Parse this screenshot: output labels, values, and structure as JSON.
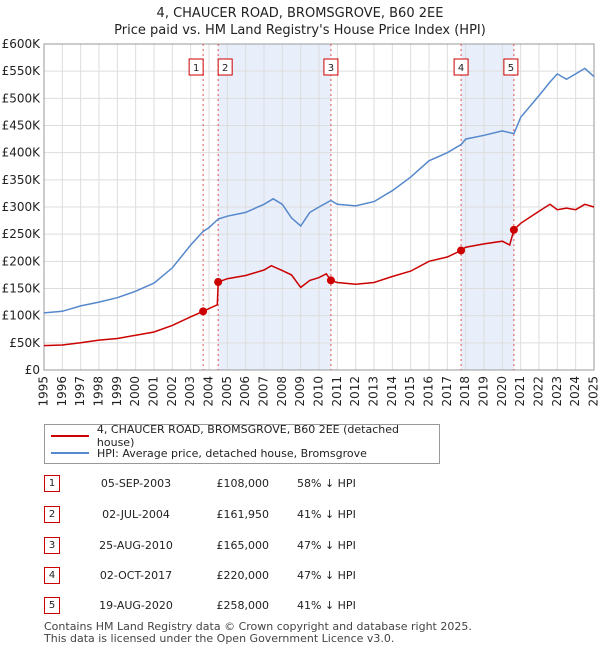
{
  "title": "4, CHAUCER ROAD, BROMSGROVE, B60 2EE",
  "subtitle": "Price paid vs. HM Land Registry's House Price Index (HPI)",
  "chart_data": {
    "type": "line",
    "xlim": [
      1995,
      2025
    ],
    "ylim": [
      0,
      600000
    ],
    "x_ticks": [
      "1995",
      "1996",
      "1997",
      "1998",
      "1999",
      "2000",
      "2001",
      "2002",
      "2003",
      "2004",
      "2005",
      "2006",
      "2007",
      "2008",
      "2009",
      "2010",
      "2011",
      "2012",
      "2013",
      "2014",
      "2015",
      "2016",
      "2017",
      "2018",
      "2019",
      "2020",
      "2021",
      "2022",
      "2023",
      "2024",
      "2025"
    ],
    "y_ticks": [
      {
        "value": 0,
        "label": "£0"
      },
      {
        "value": 50000,
        "label": "£50K"
      },
      {
        "value": 100000,
        "label": "£100K"
      },
      {
        "value": 150000,
        "label": "£150K"
      },
      {
        "value": 200000,
        "label": "£200K"
      },
      {
        "value": 250000,
        "label": "£250K"
      },
      {
        "value": 300000,
        "label": "£300K"
      },
      {
        "value": 350000,
        "label": "£350K"
      },
      {
        "value": 400000,
        "label": "£400K"
      },
      {
        "value": 450000,
        "label": "£450K"
      },
      {
        "value": 500000,
        "label": "£500K"
      },
      {
        "value": 550000,
        "label": "£550K"
      },
      {
        "value": 600000,
        "label": "£600K"
      }
    ],
    "grid": true,
    "series": [
      {
        "name": "4, CHAUCER ROAD, BROMSGROVE, B60 2EE (detached house)",
        "color": "#cc0000",
        "points": [
          [
            1995.0,
            45000
          ],
          [
            1996.0,
            46000
          ],
          [
            1997.0,
            50000
          ],
          [
            1998.0,
            55000
          ],
          [
            1999.0,
            58000
          ],
          [
            2000.0,
            64000
          ],
          [
            2001.0,
            70000
          ],
          [
            2002.0,
            82000
          ],
          [
            2003.0,
            98000
          ],
          [
            2003.68,
            108000
          ],
          [
            2004.0,
            113000
          ],
          [
            2004.45,
            120000
          ],
          [
            2004.5,
            161950
          ],
          [
            2005.0,
            168000
          ],
          [
            2006.0,
            174000
          ],
          [
            2007.0,
            184000
          ],
          [
            2007.4,
            192000
          ],
          [
            2008.0,
            183000
          ],
          [
            2008.5,
            175000
          ],
          [
            2009.0,
            152000
          ],
          [
            2009.5,
            165000
          ],
          [
            2010.0,
            170000
          ],
          [
            2010.4,
            177000
          ],
          [
            2010.65,
            165000
          ],
          [
            2011.0,
            161000
          ],
          [
            2012.0,
            158000
          ],
          [
            2013.0,
            161000
          ],
          [
            2014.0,
            172000
          ],
          [
            2015.0,
            182000
          ],
          [
            2016.0,
            200000
          ],
          [
            2017.0,
            208000
          ],
          [
            2017.75,
            220000
          ],
          [
            2018.0,
            226000
          ],
          [
            2019.0,
            232000
          ],
          [
            2020.0,
            237000
          ],
          [
            2020.4,
            230000
          ],
          [
            2020.63,
            258000
          ],
          [
            2021.0,
            270000
          ],
          [
            2022.0,
            292000
          ],
          [
            2022.6,
            305000
          ],
          [
            2023.0,
            295000
          ],
          [
            2023.5,
            298000
          ],
          [
            2024.0,
            295000
          ],
          [
            2024.5,
            305000
          ],
          [
            2025.0,
            300000
          ]
        ]
      },
      {
        "name": "HPI: Average price, detached house, Bromsgrove",
        "color": "#5588cc",
        "points": [
          [
            1995.0,
            105000
          ],
          [
            1996.0,
            108000
          ],
          [
            1997.0,
            118000
          ],
          [
            1998.0,
            125000
          ],
          [
            1999.0,
            133000
          ],
          [
            2000.0,
            145000
          ],
          [
            2001.0,
            160000
          ],
          [
            2002.0,
            188000
          ],
          [
            2003.0,
            230000
          ],
          [
            2003.68,
            255000
          ],
          [
            2004.0,
            262000
          ],
          [
            2004.5,
            278000
          ],
          [
            2005.0,
            283000
          ],
          [
            2006.0,
            290000
          ],
          [
            2007.0,
            305000
          ],
          [
            2007.5,
            315000
          ],
          [
            2008.0,
            305000
          ],
          [
            2008.5,
            280000
          ],
          [
            2009.0,
            265000
          ],
          [
            2009.5,
            290000
          ],
          [
            2010.0,
            300000
          ],
          [
            2010.65,
            312000
          ],
          [
            2011.0,
            305000
          ],
          [
            2012.0,
            302000
          ],
          [
            2013.0,
            310000
          ],
          [
            2014.0,
            330000
          ],
          [
            2015.0,
            355000
          ],
          [
            2016.0,
            385000
          ],
          [
            2017.0,
            400000
          ],
          [
            2017.75,
            415000
          ],
          [
            2018.0,
            425000
          ],
          [
            2019.0,
            432000
          ],
          [
            2020.0,
            440000
          ],
          [
            2020.63,
            435000
          ],
          [
            2021.0,
            465000
          ],
          [
            2022.0,
            505000
          ],
          [
            2022.6,
            530000
          ],
          [
            2023.0,
            545000
          ],
          [
            2023.5,
            535000
          ],
          [
            2024.0,
            545000
          ],
          [
            2024.5,
            555000
          ],
          [
            2025.0,
            540000
          ]
        ]
      }
    ],
    "sales": [
      {
        "n": "1",
        "x": 2003.68,
        "y": 108000
      },
      {
        "n": "2",
        "x": 2004.5,
        "y": 161950
      },
      {
        "n": "3",
        "x": 2010.65,
        "y": 165000
      },
      {
        "n": "4",
        "x": 2017.75,
        "y": 220000
      },
      {
        "n": "5",
        "x": 2020.63,
        "y": 258000
      }
    ],
    "shaded_ranges": [
      [
        2004.5,
        2010.65
      ],
      [
        2017.75,
        2020.63
      ]
    ]
  },
  "legend": {
    "red_label": "4, CHAUCER ROAD, BROMSGROVE, B60 2EE (detached house)",
    "blue_label": "HPI: Average price, detached house, Bromsgrove",
    "red_color": "#cc0000",
    "blue_color": "#5588cc"
  },
  "table": [
    {
      "n": "1",
      "date": "05-SEP-2003",
      "price": "£108,000",
      "hpi": "58% ↓ HPI"
    },
    {
      "n": "2",
      "date": "02-JUL-2004",
      "price": "£161,950",
      "hpi": "41% ↓ HPI"
    },
    {
      "n": "3",
      "date": "25-AUG-2010",
      "price": "£165,000",
      "hpi": "47% ↓ HPI"
    },
    {
      "n": "4",
      "date": "02-OCT-2017",
      "price": "£220,000",
      "hpi": "47% ↓ HPI"
    },
    {
      "n": "5",
      "date": "19-AUG-2020",
      "price": "£258,000",
      "hpi": "41% ↓ HPI"
    }
  ],
  "footer": {
    "line1": "Contains HM Land Registry data © Crown copyright and database right 2025.",
    "line2": "This data is licensed under the Open Government Licence v3.0."
  }
}
